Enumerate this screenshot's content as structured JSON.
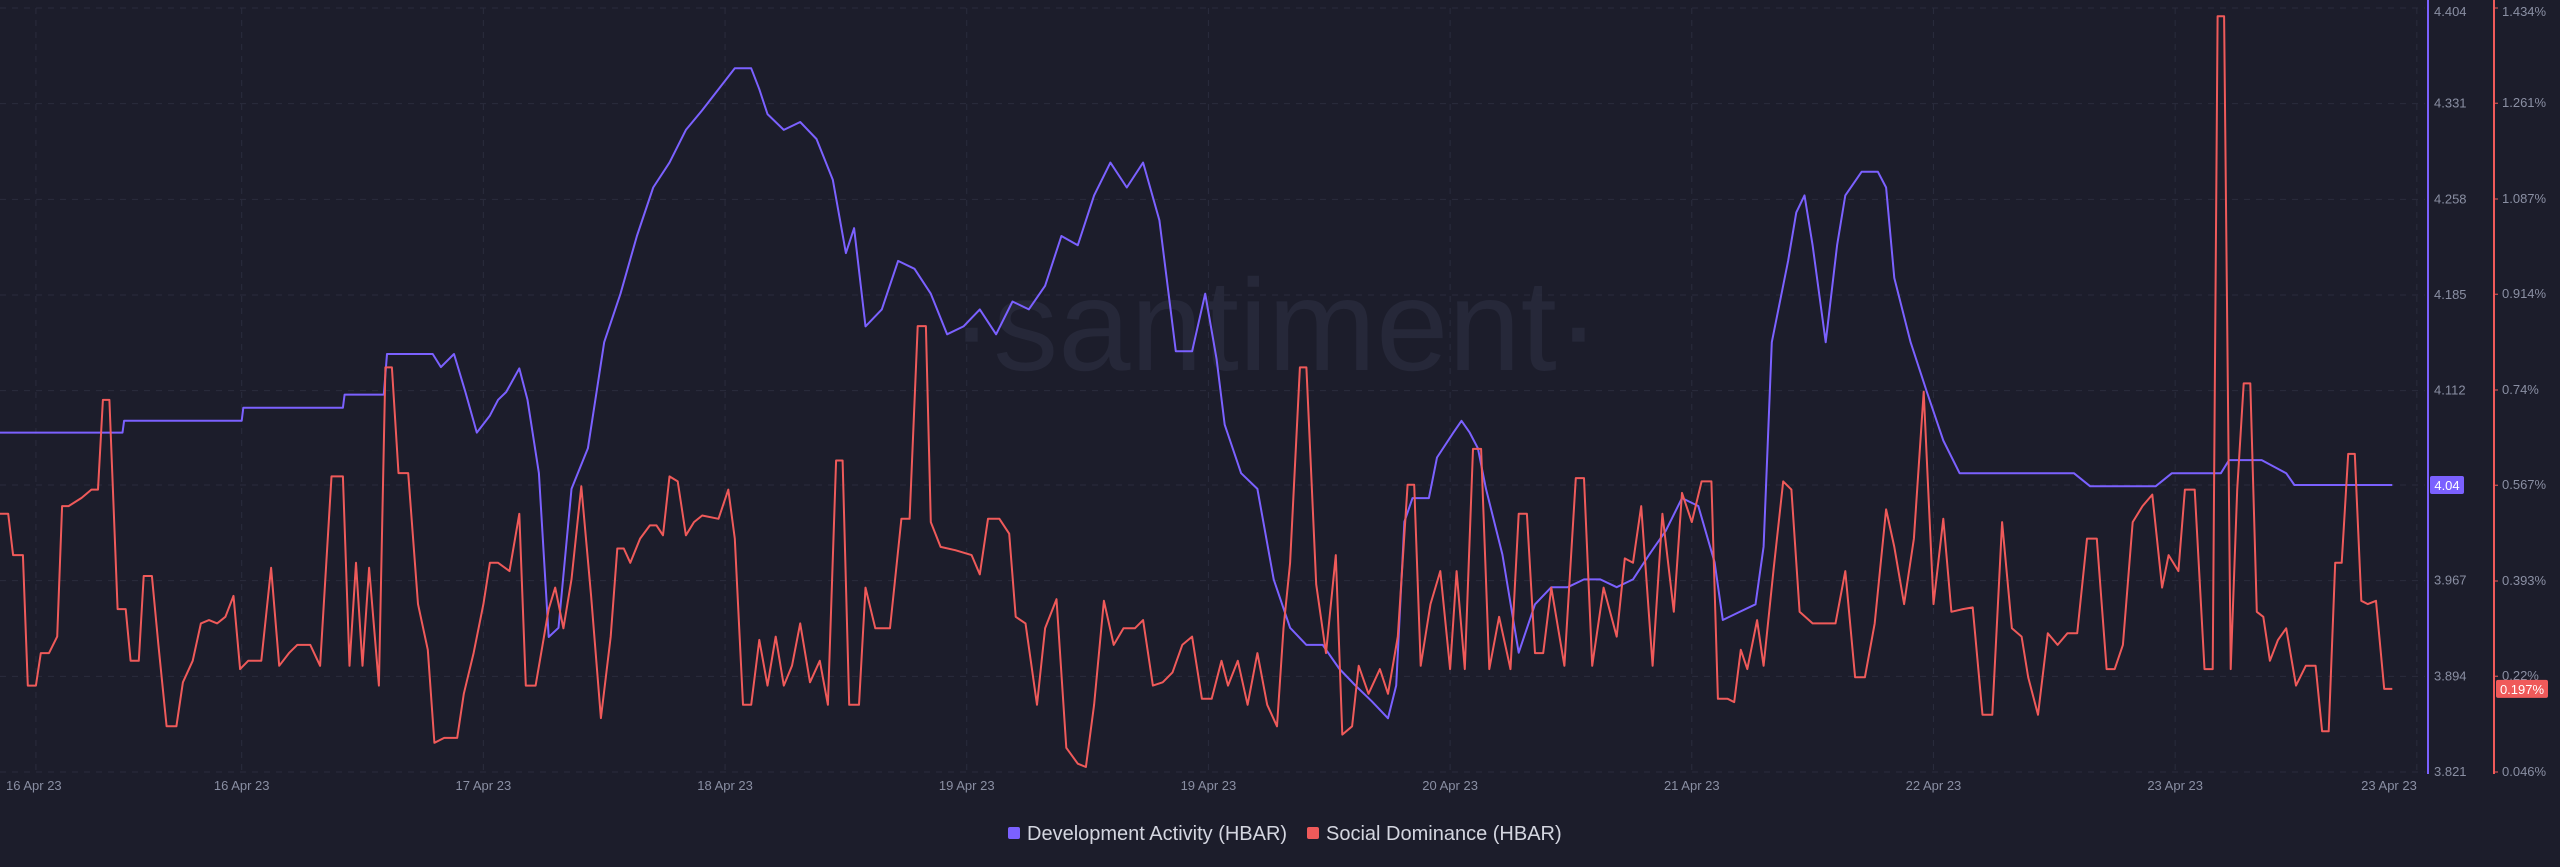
{
  "chart_data": {
    "type": "line",
    "watermark": "·santiment·",
    "grid": true,
    "legend": "bottom",
    "xlim": [
      0,
      1485
    ],
    "xticks": [
      {
        "value": 22,
        "label": "16 Apr 23"
      },
      {
        "value": 148,
        "label": "16 Apr 23"
      },
      {
        "value": 296,
        "label": "17 Apr 23"
      },
      {
        "value": 444,
        "label": "18 Apr 23"
      },
      {
        "value": 592,
        "label": "19 Apr 23"
      },
      {
        "value": 740,
        "label": "19 Apr 23"
      },
      {
        "value": 888,
        "label": "20 Apr 23"
      },
      {
        "value": 1036,
        "label": "21 Apr 23"
      },
      {
        "value": 1184,
        "label": "22 Apr 23"
      },
      {
        "value": 1332,
        "label": "23 Apr 23"
      },
      {
        "value": 1480,
        "label": "23 Apr 23"
      }
    ],
    "ylim": [
      3.821,
      4.404
    ],
    "yticks": [
      3.821,
      3.894,
      3.967,
      4.04,
      4.112,
      4.185,
      4.258,
      4.331,
      4.404
    ],
    "y2lim": [
      0.046,
      1.434
    ],
    "y2ticks": [
      {
        "value": 0.046,
        "label": "0.046%"
      },
      {
        "value": 0.22,
        "label": "0.22%"
      },
      {
        "value": 0.393,
        "label": "0.393%"
      },
      {
        "value": 0.567,
        "label": "0.567%"
      },
      {
        "value": 0.74,
        "label": "0.74%"
      },
      {
        "value": 0.914,
        "label": "0.914%"
      },
      {
        "value": 1.087,
        "label": "1.087%"
      },
      {
        "value": 1.261,
        "label": "1.261%"
      },
      {
        "value": 1.434,
        "label": "1.434%"
      }
    ],
    "series": [
      {
        "name": "Development Activity (HBAR)",
        "color": "#7b61ff",
        "axis": "y",
        "current_value": 4.04,
        "x": [
          0,
          75,
          76,
          148,
          149,
          210,
          211,
          235,
          237,
          265,
          270,
          278,
          285,
          292,
          300,
          305,
          310,
          318,
          323,
          330,
          336,
          342,
          350,
          360,
          370,
          380,
          390,
          400,
          410,
          420,
          430,
          440,
          450,
          460,
          465,
          470,
          480,
          490,
          500,
          510,
          518,
          523,
          530,
          540,
          550,
          560,
          570,
          580,
          590,
          600,
          610,
          620,
          630,
          640,
          650,
          660,
          670,
          680,
          690,
          700,
          710,
          715,
          720,
          730,
          738,
          745,
          750,
          760,
          770,
          780,
          790,
          800,
          810,
          820,
          830,
          840,
          850,
          855,
          860,
          865,
          875,
          880,
          890,
          895,
          900,
          905,
          910,
          920,
          930,
          940,
          950,
          960,
          970,
          980,
          990,
          1000,
          1010,
          1020,
          1030,
          1040,
          1050,
          1055,
          1065,
          1075,
          1080,
          1085,
          1095,
          1100,
          1105,
          1110,
          1118,
          1125,
          1130,
          1140,
          1150,
          1155,
          1160,
          1170,
          1180,
          1190,
          1200,
          1270,
          1280,
          1320,
          1330,
          1360,
          1365,
          1385,
          1400,
          1405,
          1465
        ],
        "values": [
          4.08,
          4.08,
          4.089,
          4.089,
          4.099,
          4.099,
          4.109,
          4.109,
          4.14,
          4.14,
          4.13,
          4.14,
          4.111,
          4.08,
          4.093,
          4.105,
          4.111,
          4.129,
          4.105,
          4.049,
          3.924,
          3.931,
          4.037,
          4.068,
          4.149,
          4.186,
          4.23,
          4.267,
          4.286,
          4.311,
          4.326,
          4.342,
          4.358,
          4.358,
          4.342,
          4.323,
          4.311,
          4.317,
          4.304,
          4.273,
          4.217,
          4.236,
          4.161,
          4.174,
          4.211,
          4.205,
          4.186,
          4.155,
          4.161,
          4.174,
          4.155,
          4.18,
          4.174,
          4.192,
          4.23,
          4.223,
          4.261,
          4.286,
          4.267,
          4.286,
          4.242,
          4.192,
          4.142,
          4.142,
          4.186,
          4.136,
          4.086,
          4.049,
          4.037,
          3.968,
          3.931,
          3.918,
          3.918,
          3.9,
          3.887,
          3.875,
          3.862,
          3.887,
          4.012,
          4.03,
          4.03,
          4.061,
          4.08,
          4.089,
          4.08,
          4.068,
          4.037,
          3.987,
          3.912,
          3.949,
          3.962,
          3.962,
          3.968,
          3.968,
          3.962,
          3.968,
          3.987,
          4.005,
          4.03,
          4.024,
          3.981,
          3.937,
          3.943,
          3.949,
          3.993,
          4.149,
          4.211,
          4.248,
          4.261,
          4.223,
          4.149,
          4.223,
          4.261,
          4.279,
          4.279,
          4.267,
          4.198,
          4.149,
          4.111,
          4.074,
          4.049,
          4.049,
          4.039,
          4.039,
          4.049,
          4.049,
          4.059,
          4.059,
          4.049,
          4.04,
          4.04
        ]
      },
      {
        "name": "Social Dominance (HBAR)",
        "color": "#ef5a5a",
        "axis": "y2",
        "current_value": {
          "value": 0.197,
          "label": "0.197%"
        },
        "x": [
          0,
          5,
          8,
          14,
          17,
          22,
          25,
          30,
          35,
          38,
          42,
          50,
          56,
          60,
          63,
          67,
          72,
          77,
          80,
          85,
          88,
          93,
          97,
          102,
          108,
          112,
          118,
          123,
          128,
          133,
          138,
          143,
          147,
          152,
          160,
          166,
          171,
          177,
          182,
          190,
          196,
          203,
          210,
          214,
          218,
          222,
          226,
          232,
          236,
          240,
          244,
          250,
          256,
          262,
          266,
          272,
          280,
          284,
          290,
          296,
          300,
          305,
          312,
          318,
          322,
          328,
          336,
          340,
          345,
          350,
          356,
          362,
          368,
          374,
          378,
          382,
          386,
          392,
          398,
          402,
          406,
          410,
          415,
          420,
          425,
          430,
          440,
          446,
          450,
          455,
          460,
          465,
          470,
          475,
          480,
          485,
          490,
          496,
          502,
          507,
          512,
          516,
          520,
          526,
          530,
          536,
          545,
          552,
          557,
          562,
          567,
          570,
          576,
          585,
          595,
          600,
          605,
          612,
          618,
          622,
          628,
          635,
          640,
          647,
          653,
          660,
          665,
          670,
          676,
          682,
          688,
          695,
          700,
          706,
          712,
          718,
          724,
          730,
          736,
          742,
          748,
          752,
          758,
          764,
          770,
          776,
          782,
          786,
          790,
          796,
          800,
          806,
          812,
          818,
          822,
          828,
          832,
          838,
          845,
          850,
          856,
          862,
          866,
          870,
          876,
          882,
          888,
          892,
          897,
          902,
          907,
          912,
          918,
          925,
          930,
          935,
          940,
          945,
          950,
          958,
          965,
          970,
          975,
          982,
          990,
          995,
          1000,
          1005,
          1012,
          1018,
          1025,
          1030,
          1036,
          1042,
          1048,
          1052,
          1058,
          1062,
          1066,
          1070,
          1076,
          1080,
          1086,
          1092,
          1097,
          1102,
          1110,
          1118,
          1124,
          1130,
          1136,
          1142,
          1148,
          1155,
          1160,
          1166,
          1172,
          1178,
          1184,
          1190,
          1195,
          1202,
          1208,
          1214,
          1220,
          1226,
          1232,
          1238,
          1242,
          1248,
          1254,
          1260,
          1266,
          1272,
          1278,
          1284,
          1290,
          1295,
          1300,
          1306,
          1312,
          1318,
          1324,
          1328,
          1334,
          1338,
          1344,
          1350,
          1355,
          1358,
          1362,
          1366,
          1370,
          1374,
          1378,
          1382,
          1386,
          1390,
          1395,
          1400,
          1406,
          1412,
          1418,
          1422,
          1426,
          1430,
          1434,
          1438,
          1442,
          1446,
          1450,
          1455,
          1460,
          1465
        ],
        "values": [
          0.515,
          0.515,
          0.44,
          0.44,
          0.203,
          0.203,
          0.262,
          0.262,
          0.292,
          0.529,
          0.529,
          0.544,
          0.559,
          0.559,
          0.722,
          0.722,
          0.342,
          0.342,
          0.248,
          0.248,
          0.402,
          0.402,
          0.277,
          0.129,
          0.129,
          0.209,
          0.248,
          0.316,
          0.322,
          0.316,
          0.328,
          0.366,
          0.233,
          0.248,
          0.248,
          0.417,
          0.239,
          0.262,
          0.277,
          0.277,
          0.239,
          0.583,
          0.583,
          0.239,
          0.426,
          0.239,
          0.417,
          0.203,
          0.781,
          0.781,
          0.589,
          0.589,
          0.351,
          0.268,
          0.099,
          0.108,
          0.108,
          0.188,
          0.262,
          0.351,
          0.426,
          0.426,
          0.411,
          0.515,
          0.203,
          0.203,
          0.342,
          0.381,
          0.307,
          0.396,
          0.565,
          0.366,
          0.144,
          0.292,
          0.452,
          0.452,
          0.426,
          0.47,
          0.494,
          0.494,
          0.476,
          0.583,
          0.574,
          0.476,
          0.5,
          0.512,
          0.506,
          0.559,
          0.47,
          0.168,
          0.168,
          0.286,
          0.203,
          0.292,
          0.203,
          0.239,
          0.316,
          0.209,
          0.248,
          0.168,
          0.612,
          0.612,
          0.168,
          0.168,
          0.381,
          0.307,
          0.307,
          0.506,
          0.506,
          0.856,
          0.856,
          0.5,
          0.455,
          0.449,
          0.44,
          0.405,
          0.506,
          0.506,
          0.479,
          0.328,
          0.316,
          0.168,
          0.307,
          0.36,
          0.09,
          0.061,
          0.055,
          0.168,
          0.357,
          0.277,
          0.307,
          0.307,
          0.322,
          0.203,
          0.209,
          0.227,
          0.277,
          0.292,
          0.179,
          0.179,
          0.248,
          0.203,
          0.248,
          0.168,
          0.262,
          0.168,
          0.129,
          0.307,
          0.426,
          0.781,
          0.781,
          0.387,
          0.262,
          0.44,
          0.114,
          0.129,
          0.239,
          0.188,
          0.233,
          0.188,
          0.292,
          0.568,
          0.568,
          0.239,
          0.351,
          0.411,
          0.233,
          0.411,
          0.233,
          0.633,
          0.633,
          0.233,
          0.328,
          0.233,
          0.515,
          0.515,
          0.262,
          0.262,
          0.381,
          0.239,
          0.58,
          0.58,
          0.239,
          0.381,
          0.292,
          0.434,
          0.426,
          0.529,
          0.239,
          0.515,
          0.337,
          0.553,
          0.5,
          0.574,
          0.574,
          0.179,
          0.179,
          0.173,
          0.268,
          0.233,
          0.322,
          0.239,
          0.411,
          0.574,
          0.559,
          0.337,
          0.316,
          0.316,
          0.316,
          0.411,
          0.218,
          0.218,
          0.316,
          0.523,
          0.455,
          0.351,
          0.47,
          0.737,
          0.351,
          0.506,
          0.337,
          0.342,
          0.345,
          0.15,
          0.15,
          0.5,
          0.307,
          0.292,
          0.218,
          0.15,
          0.298,
          0.277,
          0.298,
          0.298,
          0.47,
          0.47,
          0.233,
          0.233,
          0.277,
          0.5,
          0.529,
          0.55,
          0.381,
          0.44,
          0.411,
          0.559,
          0.559,
          0.233,
          0.233,
          1.419,
          1.419,
          0.233,
          0.559,
          0.752,
          0.752,
          0.337,
          0.328,
          0.248,
          0.286,
          0.307,
          0.203,
          0.239,
          0.239,
          0.12,
          0.12,
          0.426,
          0.426,
          0.624,
          0.624,
          0.357,
          0.351,
          0.357,
          0.197,
          0.197
        ]
      }
    ]
  }
}
